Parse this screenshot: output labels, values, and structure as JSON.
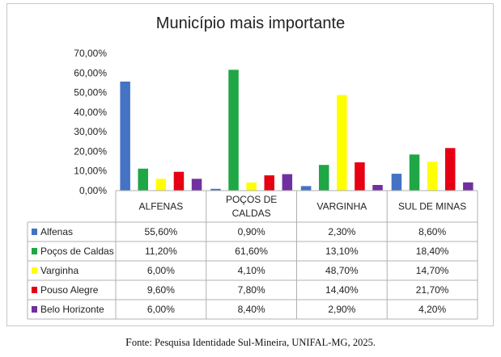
{
  "chart_data": {
    "type": "bar",
    "title": "Município mais importante",
    "categories": [
      "ALFENAS",
      "POÇOS DE CALDAS",
      "VARGINHA",
      "SUL DE MINAS"
    ],
    "category_lines": [
      [
        "ALFENAS"
      ],
      [
        "POÇOS DE",
        "CALDAS"
      ],
      [
        "VARGINHA"
      ],
      [
        "SUL DE MINAS"
      ]
    ],
    "ylim": [
      0,
      70
    ],
    "yticks": [
      "0,00%",
      "10,00%",
      "20,00%",
      "30,00%",
      "40,00%",
      "50,00%",
      "60,00%",
      "70,00%"
    ],
    "series": [
      {
        "name": "Alfenas",
        "color": "#4472c4",
        "values": [
          55.6,
          0.9,
          2.3,
          8.6
        ],
        "labels": [
          "55,60%",
          "0,90%",
          "2,30%",
          "8,60%"
        ]
      },
      {
        "name": "Poços de Caldas",
        "color": "#1fa645",
        "values": [
          11.2,
          61.6,
          13.1,
          18.4
        ],
        "labels": [
          "11,20%",
          "61,60%",
          "13,10%",
          "18,40%"
        ]
      },
      {
        "name": "Varginha",
        "color": "#ffff00",
        "values": [
          6.0,
          4.1,
          48.7,
          14.7
        ],
        "labels": [
          "6,00%",
          "4,10%",
          "48,70%",
          "14,70%"
        ]
      },
      {
        "name": "Pouso Alegre",
        "color": "#e60012",
        "values": [
          9.6,
          7.8,
          14.4,
          21.7
        ],
        "labels": [
          "9,60%",
          "7,80%",
          "14,40%",
          "21,70%"
        ]
      },
      {
        "name": "Belo Horizonte",
        "color": "#7030a0",
        "values": [
          6.0,
          8.4,
          2.9,
          4.2
        ],
        "labels": [
          "6,00%",
          "8,40%",
          "2,90%",
          "4,20%"
        ]
      }
    ],
    "grid": false,
    "legend": "data-table"
  },
  "caption": {
    "first_letter": "F",
    "rest": "onte: Pesquisa Identidade Sul-Mineira, UNIFAL-MG, 2025."
  }
}
